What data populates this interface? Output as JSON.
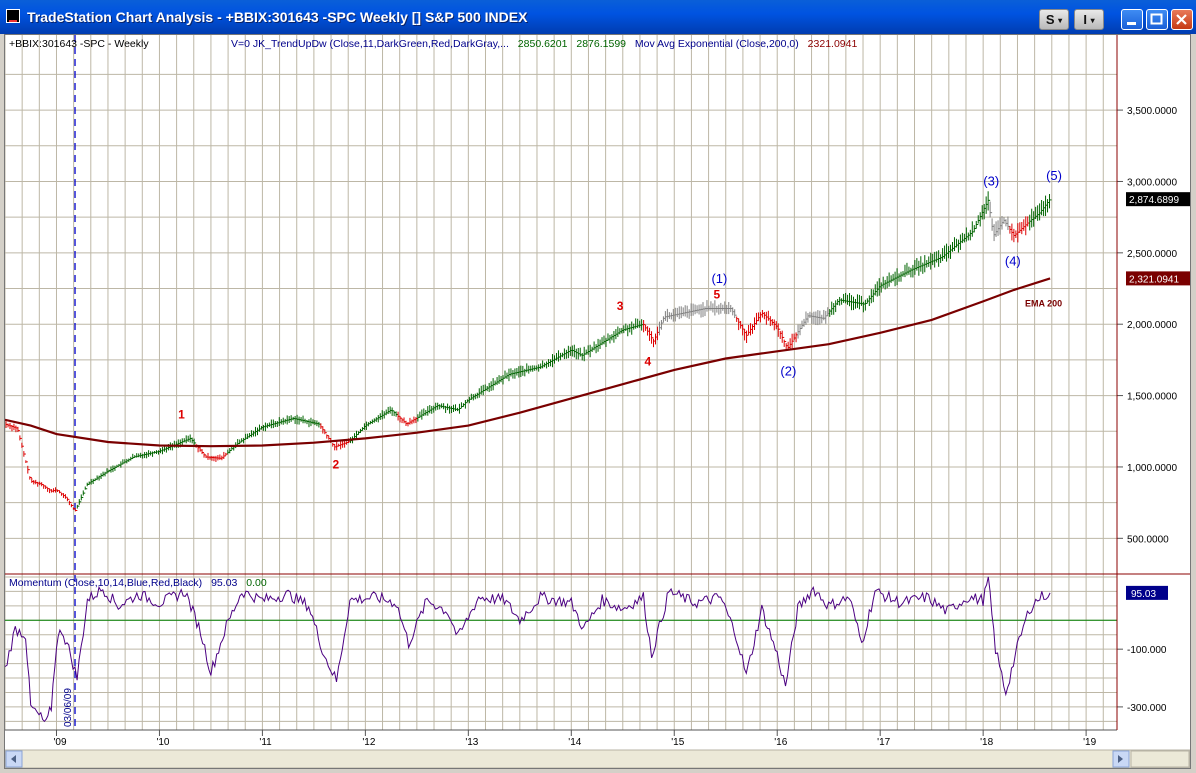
{
  "window": {
    "title": "TradeStation Chart Analysis - +BBIX:301643 -SPC Weekly [] S&P 500 INDEX",
    "buttons": {
      "s_label": "S",
      "i_label": "I",
      "caret": "▾"
    },
    "colors": {
      "titlebar": "#0053e1"
    }
  },
  "legend": {
    "symbol": "+BBIX:301643 -SPC - Weekly",
    "indicator_label": "V=0  JK_TrendUpDw (Close,11,DarkGreen,Red,DarkGray,...",
    "value_1": "2850.6201",
    "value_2": "2876.1599",
    "ema_label": "Mov Avg Exponential (Close,200,0)",
    "ema_value": "2321.0941"
  },
  "momentum_legend": {
    "label": "Momentum (Close,10,14,Blue,Red,Black)",
    "value": "95.03",
    "zero": "0.00"
  },
  "chart_data": {
    "type": "bar",
    "title": "S&P 500 INDEX",
    "x_tick_labels": [
      "'09",
      "'10",
      "'11",
      "'12",
      "'13",
      "'14",
      "'15",
      "'16",
      "'17",
      "'18",
      "'19"
    ],
    "x_tick_years": [
      2009,
      2010,
      2011,
      2012,
      2013,
      2014,
      2015,
      2016,
      2017,
      2018,
      2019
    ],
    "xlim": [
      2008.5,
      2019.3
    ],
    "ylim": [
      250,
      3900
    ],
    "y_ticks": [
      500,
      1000,
      1500,
      2000,
      2500,
      3000,
      3500
    ],
    "y_tick_labels": [
      "500.0000",
      "1,000.0000",
      "1,500.0000",
      "2,000.0000",
      "2,500.0000",
      "3,000.0000",
      "3,500.0000"
    ],
    "grid": true,
    "price_key_points": [
      [
        2008.5,
        1300
      ],
      [
        2008.62,
        1270
      ],
      [
        2008.75,
        900
      ],
      [
        2008.85,
        880
      ],
      [
        2008.95,
        830
      ],
      [
        2009.0,
        840
      ],
      [
        2009.1,
        780
      ],
      [
        2009.18,
        690
      ],
      [
        2009.3,
        880
      ],
      [
        2009.5,
        970
      ],
      [
        2009.75,
        1070
      ],
      [
        2010.0,
        1110
      ],
      [
        2010.3,
        1200
      ],
      [
        2010.45,
        1070
      ],
      [
        2010.6,
        1060
      ],
      [
        2010.75,
        1160
      ],
      [
        2011.0,
        1280
      ],
      [
        2011.3,
        1340
      ],
      [
        2011.55,
        1300
      ],
      [
        2011.7,
        1140
      ],
      [
        2011.85,
        1180
      ],
      [
        2012.0,
        1290
      ],
      [
        2012.25,
        1400
      ],
      [
        2012.4,
        1300
      ],
      [
        2012.7,
        1430
      ],
      [
        2012.9,
        1400
      ],
      [
        2013.0,
        1470
      ],
      [
        2013.4,
        1650
      ],
      [
        2013.7,
        1700
      ],
      [
        2014.0,
        1820
      ],
      [
        2014.1,
        1780
      ],
      [
        2014.5,
        1960
      ],
      [
        2014.7,
        2000
      ],
      [
        2014.8,
        1880
      ],
      [
        2014.9,
        2050
      ],
      [
        2015.3,
        2110
      ],
      [
        2015.55,
        2110
      ],
      [
        2015.7,
        1920
      ],
      [
        2015.85,
        2080
      ],
      [
        2016.0,
        1980
      ],
      [
        2016.1,
        1830
      ],
      [
        2016.3,
        2060
      ],
      [
        2016.45,
        2040
      ],
      [
        2016.6,
        2170
      ],
      [
        2016.85,
        2140
      ],
      [
        2017.0,
        2270
      ],
      [
        2017.3,
        2380
      ],
      [
        2017.6,
        2470
      ],
      [
        2017.9,
        2650
      ],
      [
        2018.05,
        2870
      ],
      [
        2018.1,
        2620
      ],
      [
        2018.2,
        2730
      ],
      [
        2018.3,
        2620
      ],
      [
        2018.45,
        2720
      ],
      [
        2018.55,
        2780
      ],
      [
        2018.65,
        2876
      ]
    ],
    "trend_color_segments": [
      {
        "from": 2008.5,
        "to": 2009.2,
        "color": "#dd0000"
      },
      {
        "from": 2009.2,
        "to": 2010.35,
        "color": "#006400"
      },
      {
        "from": 2010.35,
        "to": 2010.65,
        "color": "#dd0000"
      },
      {
        "from": 2010.65,
        "to": 2011.55,
        "color": "#006400"
      },
      {
        "from": 2011.55,
        "to": 2011.85,
        "color": "#dd0000"
      },
      {
        "from": 2011.85,
        "to": 2012.3,
        "color": "#006400"
      },
      {
        "from": 2012.3,
        "to": 2012.5,
        "color": "#dd0000"
      },
      {
        "from": 2012.5,
        "to": 2014.7,
        "color": "#006400"
      },
      {
        "from": 2014.7,
        "to": 2014.85,
        "color": "#dd0000"
      },
      {
        "from": 2014.85,
        "to": 2015.6,
        "color": "#808080"
      },
      {
        "from": 2015.6,
        "to": 2016.2,
        "color": "#dd0000"
      },
      {
        "from": 2016.2,
        "to": 2016.5,
        "color": "#808080"
      },
      {
        "from": 2016.5,
        "to": 2018.05,
        "color": "#006400"
      },
      {
        "from": 2018.05,
        "to": 2018.25,
        "color": "#808080"
      },
      {
        "from": 2018.25,
        "to": 2018.45,
        "color": "#dd0000"
      },
      {
        "from": 2018.45,
        "to": 2018.7,
        "color": "#006400"
      }
    ],
    "ema200": {
      "label": "EMA 200",
      "color": "#7a0000",
      "points": [
        [
          2008.5,
          1330
        ],
        [
          2008.75,
          1290
        ],
        [
          2009.0,
          1230
        ],
        [
          2009.5,
          1175
        ],
        [
          2010.0,
          1150
        ],
        [
          2010.5,
          1145
        ],
        [
          2011.0,
          1150
        ],
        [
          2011.5,
          1170
        ],
        [
          2012.0,
          1200
        ],
        [
          2012.5,
          1240
        ],
        [
          2013.0,
          1290
        ],
        [
          2013.5,
          1380
        ],
        [
          2014.0,
          1480
        ],
        [
          2014.5,
          1580
        ],
        [
          2015.0,
          1680
        ],
        [
          2015.5,
          1760
        ],
        [
          2016.0,
          1810
        ],
        [
          2016.5,
          1860
        ],
        [
          2017.0,
          1940
        ],
        [
          2017.5,
          2030
        ],
        [
          2018.0,
          2160
        ],
        [
          2018.3,
          2240
        ],
        [
          2018.65,
          2321
        ]
      ]
    },
    "current_price_label": "2,874.6899",
    "ema_price_label": "2,321.0941",
    "wave_labels": [
      {
        "text": "1",
        "x": 2010.22,
        "y": 1340,
        "color": "#dd0000"
      },
      {
        "text": "2",
        "x": 2011.72,
        "y": 990,
        "color": "#dd0000"
      },
      {
        "text": "3",
        "x": 2014.48,
        "y": 2100,
        "color": "#dd0000"
      },
      {
        "text": "4",
        "x": 2014.75,
        "y": 1710,
        "color": "#dd0000"
      },
      {
        "text": "5",
        "x": 2015.42,
        "y": 2180,
        "color": "#dd0000"
      },
      {
        "text": "(1)",
        "x": 2015.4,
        "y": 2290,
        "color": "#0000cc"
      },
      {
        "text": "(2)",
        "x": 2016.07,
        "y": 1640,
        "color": "#0000cc"
      },
      {
        "text": "(3)",
        "x": 2018.04,
        "y": 2970,
        "color": "#0000cc"
      },
      {
        "text": "(4)",
        "x": 2018.25,
        "y": 2410,
        "color": "#0000cc"
      },
      {
        "text": "(5)",
        "x": 2018.65,
        "y": 3010,
        "color": "#0000cc"
      }
    ],
    "marker": {
      "x": 2009.18,
      "label": "03/06/09",
      "color": "#0000cc"
    },
    "momentum": {
      "ylim": [
        -380,
        150
      ],
      "tick_values": [
        -100,
        -300
      ],
      "tick_labels": [
        "-100.000",
        "-300.000"
      ],
      "zero_line_color": "#008000",
      "line_color": "#4b0082",
      "current_label": "95.03",
      "points": [
        [
          2008.5,
          -170
        ],
        [
          2008.6,
          -30
        ],
        [
          2008.7,
          -50
        ],
        [
          2008.75,
          -300
        ],
        [
          2008.83,
          -330
        ],
        [
          2008.9,
          -360
        ],
        [
          2008.95,
          -300
        ],
        [
          2009.0,
          -80
        ],
        [
          2009.05,
          -30
        ],
        [
          2009.12,
          -100
        ],
        [
          2009.2,
          -200
        ],
        [
          2009.3,
          70
        ],
        [
          2009.45,
          110
        ],
        [
          2009.6,
          50
        ],
        [
          2009.8,
          90
        ],
        [
          2010.0,
          60
        ],
        [
          2010.25,
          100
        ],
        [
          2010.4,
          -40
        ],
        [
          2010.5,
          -180
        ],
        [
          2010.65,
          -20
        ],
        [
          2010.8,
          100
        ],
        [
          2011.0,
          70
        ],
        [
          2011.25,
          90
        ],
        [
          2011.45,
          50
        ],
        [
          2011.6,
          -120
        ],
        [
          2011.72,
          -210
        ],
        [
          2011.85,
          70
        ],
        [
          2012.1,
          80
        ],
        [
          2012.3,
          60
        ],
        [
          2012.42,
          -80
        ],
        [
          2012.6,
          70
        ],
        [
          2012.8,
          30
        ],
        [
          2012.9,
          -60
        ],
        [
          2013.1,
          80
        ],
        [
          2013.35,
          70
        ],
        [
          2013.5,
          0
        ],
        [
          2013.7,
          80
        ],
        [
          2014.0,
          60
        ],
        [
          2014.12,
          -30
        ],
        [
          2014.3,
          70
        ],
        [
          2014.5,
          40
        ],
        [
          2014.7,
          80
        ],
        [
          2014.78,
          -120
        ],
        [
          2014.95,
          100
        ],
        [
          2015.2,
          60
        ],
        [
          2015.45,
          80
        ],
        [
          2015.6,
          -50
        ],
        [
          2015.7,
          -190
        ],
        [
          2015.85,
          40
        ],
        [
          2016.0,
          -120
        ],
        [
          2016.08,
          -230
        ],
        [
          2016.2,
          40
        ],
        [
          2016.35,
          110
        ],
        [
          2016.5,
          50
        ],
        [
          2016.7,
          80
        ],
        [
          2016.82,
          -80
        ],
        [
          2016.95,
          100
        ],
        [
          2017.2,
          60
        ],
        [
          2017.45,
          80
        ],
        [
          2017.65,
          30
        ],
        [
          2017.85,
          80
        ],
        [
          2018.0,
          70
        ],
        [
          2018.05,
          140
        ],
        [
          2018.12,
          -100
        ],
        [
          2018.22,
          -250
        ],
        [
          2018.35,
          -70
        ],
        [
          2018.45,
          40
        ],
        [
          2018.55,
          80
        ],
        [
          2018.65,
          95
        ]
      ]
    }
  }
}
